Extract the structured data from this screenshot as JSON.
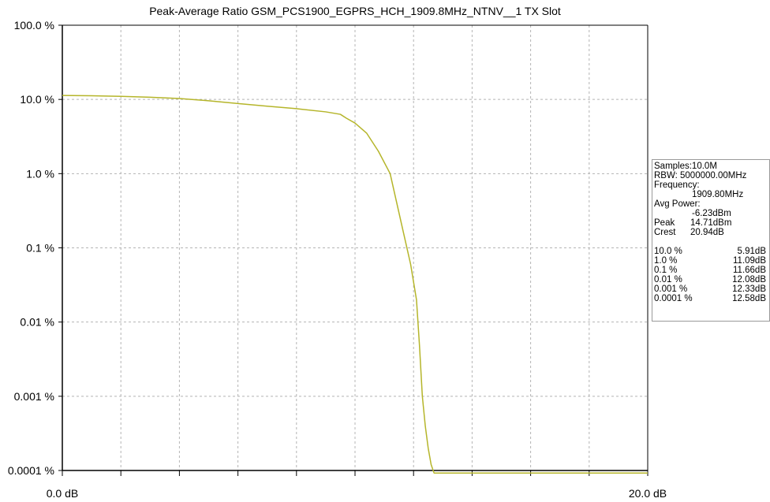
{
  "chart_data": {
    "type": "line",
    "title": "Peak-Average Ratio GSM_PCS1900_EGPRS_HCH_1909.8MHz_NTNV__1 TX Slot",
    "x_range": [
      0,
      20
    ],
    "x_unit": "dB",
    "x_tick_labels": [
      "0.0 dB",
      "20.0 dB"
    ],
    "x_minor_tick_count": 10,
    "y_scale": "log",
    "y_range": [
      0.0001,
      100
    ],
    "y_tick_values": [
      100,
      10,
      1,
      0.1,
      0.01,
      0.001,
      0.0001
    ],
    "y_tick_labels": [
      "100.0 %",
      "10.0 %",
      "1.0 %",
      "0.1 %",
      "0.01 %",
      "0.001 %",
      "0.0001 %"
    ],
    "grid": true,
    "series": [
      {
        "color": "#b5b52a",
        "x": [
          0,
          1,
          2,
          3,
          4,
          5,
          6,
          7,
          8,
          9,
          9.5,
          9.7,
          10,
          10.4,
          10.8,
          11.2,
          11.6,
          11.9,
          12.1,
          12.2,
          12.3,
          12.4,
          12.5,
          12.6,
          12.7,
          20
        ],
        "y": [
          11.3,
          11.2,
          11.0,
          10.7,
          10.3,
          9.6,
          8.8,
          8.1,
          7.5,
          6.8,
          6.3,
          5.6,
          4.8,
          3.5,
          2.0,
          1.0,
          0.2,
          0.06,
          0.02,
          0.005,
          0.001,
          0.0004,
          0.0002,
          0.00012,
          9.25e-05,
          9.25e-05
        ]
      }
    ]
  },
  "info_panel": {
    "samples": "Samples:10.0M",
    "rbw": "RBW: 5000000.00MHz",
    "frequency_label": "Frequency:",
    "frequency_value": "1909.80MHz",
    "avg_power_label": "Avg Power:",
    "avg_power_value": "-6.23dBm",
    "peak_label": "Peak",
    "peak_value": "14.71dBm",
    "crest_label": "Crest",
    "crest_value": "20.94dB",
    "percentiles": [
      {
        "label": "10.0 %",
        "value": "5.91dB"
      },
      {
        "label": "1.0 %",
        "value": "11.09dB"
      },
      {
        "label": "0.1 %",
        "value": "11.66dB"
      },
      {
        "label": "0.01 %",
        "value": "12.08dB"
      },
      {
        "label": "0.001 %",
        "value": "12.33dB"
      },
      {
        "label": "0.0001 %",
        "value": "12.58dB"
      }
    ]
  }
}
